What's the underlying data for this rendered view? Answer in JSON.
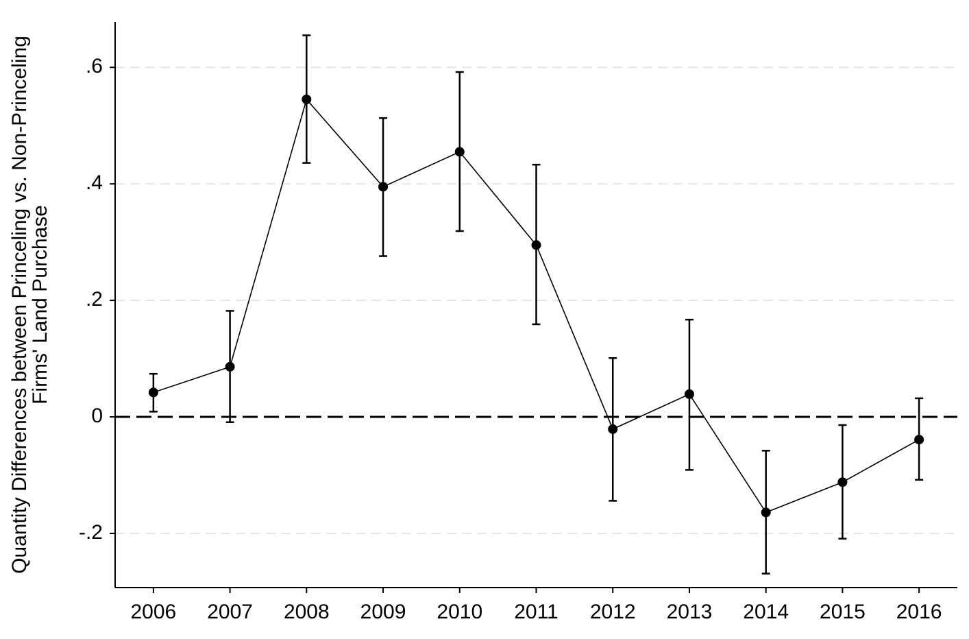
{
  "chart_data": {
    "type": "errorbar_line",
    "ylabel": [
      "Quantity Differences between Princeling vs. Non-Princeling",
      "Firms' Land Purchase"
    ],
    "x": [
      2006,
      2007,
      2008,
      2009,
      2010,
      2011,
      2012,
      2013,
      2014,
      2015,
      2016
    ],
    "series": [
      {
        "color": "#000000",
        "values": [
          0.042,
          0.086,
          0.545,
          0.395,
          0.455,
          0.295,
          -0.021,
          0.039,
          -0.164,
          -0.112,
          -0.039
        ],
        "lower": [
          0.009,
          -0.009,
          0.436,
          0.276,
          0.319,
          0.159,
          -0.144,
          -0.091,
          -0.269,
          -0.209,
          -0.108
        ],
        "upper": [
          0.074,
          0.182,
          0.655,
          0.513,
          0.592,
          0.433,
          0.101,
          0.167,
          -0.058,
          -0.014,
          0.032
        ]
      }
    ],
    "xlim": [
      2005.5,
      2016.5
    ],
    "xticks": [
      2006,
      2007,
      2008,
      2009,
      2010,
      2011,
      2012,
      2013,
      2014,
      2015,
      2016
    ],
    "ylim": [
      -0.293,
      0.678
    ],
    "yticks": [
      {
        "value": -0.2,
        "label": "-.2"
      },
      0,
      {
        "value": 0.2,
        "label": ".2"
      },
      {
        "value": 0.4,
        "label": ".4"
      },
      {
        "value": 0.6,
        "label": ".6"
      }
    ],
    "grid": true,
    "zero_line": true
  }
}
